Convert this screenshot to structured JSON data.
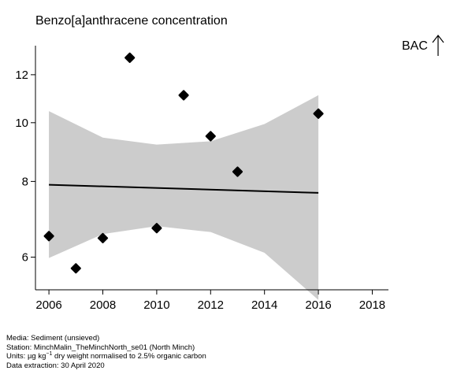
{
  "chart_data": {
    "type": "scatter",
    "title": "Benzo[a]anthracene concentration",
    "y_scale": "log",
    "xlim": [
      2005.5,
      2018.6
    ],
    "ylim": [
      5.3,
      13.4
    ],
    "x_ticks": [
      2006,
      2008,
      2010,
      2012,
      2014,
      2016,
      2018
    ],
    "y_ticks": [
      6,
      8,
      10,
      12
    ],
    "points": [
      {
        "x": 2006,
        "y": 6.5
      },
      {
        "x": 2007,
        "y": 5.75
      },
      {
        "x": 2008,
        "y": 6.45
      },
      {
        "x": 2009,
        "y": 12.8
      },
      {
        "x": 2010,
        "y": 6.7
      },
      {
        "x": 2011,
        "y": 11.1
      },
      {
        "x": 2012,
        "y": 9.5
      },
      {
        "x": 2013,
        "y": 8.3
      },
      {
        "x": 2016,
        "y": 10.35
      }
    ],
    "trend": {
      "x": [
        2006,
        2016
      ],
      "y": [
        7.9,
        7.66
      ]
    },
    "confidence_band": {
      "x": [
        2006,
        2008,
        2010,
        2012,
        2014,
        2016
      ],
      "lower": [
        5.98,
        6.55,
        6.75,
        6.6,
        6.1,
        5.1
      ],
      "upper": [
        10.45,
        9.45,
        9.2,
        9.32,
        9.95,
        11.1
      ]
    },
    "colors": {
      "band": "#cccccc",
      "points": "#000000",
      "line": "#000000"
    }
  },
  "assessment_label": "BAC",
  "assessment_arrow": "up-arrow",
  "footer": {
    "media": "Media: Sediment (unsieved)",
    "station": "Station: MinchMalin_TheMinchNorth_se01 (North Minch)",
    "units_prefix": "Units: ",
    "units_unit": "µg kg",
    "units_exp": "−1",
    "units_suffix": " dry weight normalised to 2.5% organic carbon",
    "extraction": "Data extraction: 30 April 2020"
  }
}
